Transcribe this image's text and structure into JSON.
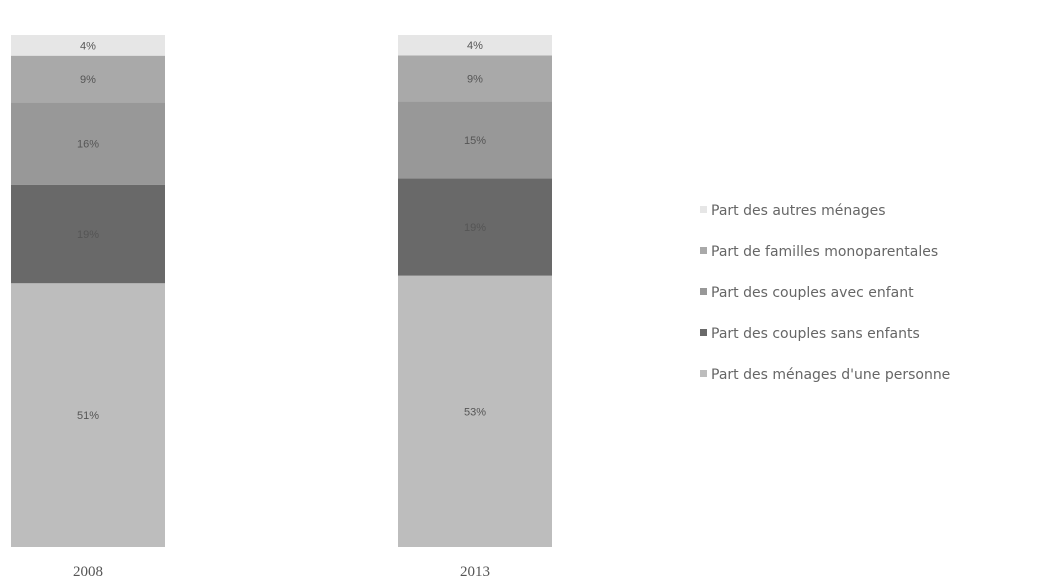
{
  "chart_data": {
    "type": "bar",
    "stacked": true,
    "normalized_percent": true,
    "categories": [
      "2008",
      "2013"
    ],
    "series": [
      {
        "name": "Part des ménages d'une personne",
        "values": [
          51,
          53
        ],
        "labels": [
          "51%",
          "53%"
        ],
        "color": "#bdbdbd"
      },
      {
        "name": "Part des couples sans enfants",
        "values": [
          19,
          19
        ],
        "labels": [
          "19%",
          "19%"
        ],
        "color": "#696969"
      },
      {
        "name": "Part des couples avec enfant",
        "values": [
          16,
          15
        ],
        "labels": [
          "16%",
          "15%"
        ],
        "color": "#989898"
      },
      {
        "name": "Part de familles monoparentales",
        "values": [
          9,
          9
        ],
        "labels": [
          "9%",
          "9%"
        ],
        "color": "#a9a9a9"
      },
      {
        "name": "Part des autres ménages",
        "values": [
          4,
          4
        ],
        "labels": [
          "4%",
          "4%"
        ],
        "color": "#e6e6e6"
      }
    ],
    "legend_order": [
      "Part des autres ménages",
      "Part de familles monoparentales",
      "Part des couples avec enfant",
      "Part des couples sans enfants",
      "Part des ménages d'une personne"
    ],
    "legend_position": "right",
    "title": "",
    "xlabel": "",
    "ylabel": "",
    "grid": false,
    "axes_visible": false
  }
}
